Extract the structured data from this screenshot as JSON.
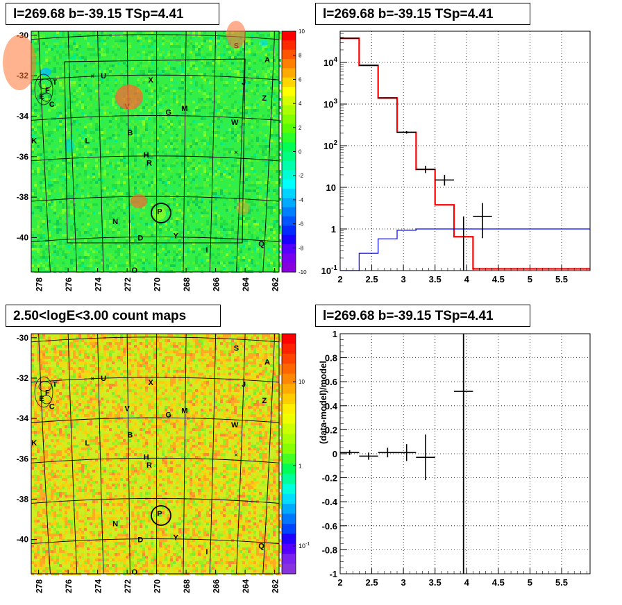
{
  "panels": {
    "tl_title": "l=269.68 b=-39.15 TSp=4.41",
    "tr_title": "l=269.68 b=-39.15 TSp=4.41",
    "bl_title": "2.50<logE<3.00 count maps",
    "br_title": "l=269.68 b=-39.15 TSp=4.41"
  },
  "chart_data": [
    {
      "type": "heatmap",
      "name": "ts-map",
      "title": "l=269.68 b=-39.15 TSp=4.41",
      "x_ticks": [
        "278",
        "276",
        "274",
        "272",
        "270",
        "268",
        "266",
        "264",
        "262"
      ],
      "xlim": [
        278.5,
        261.7
      ],
      "y_ticks": [
        "-30",
        "-32",
        "-34",
        "-36",
        "-38",
        "-40"
      ],
      "ylim": [
        -41.7,
        -29.8
      ],
      "colorbar_ticks": [
        "10",
        "8",
        "6",
        "4",
        "2",
        "0",
        "-2",
        "-4",
        "-6",
        "-8",
        "-10"
      ],
      "colorbar_range": [
        -10,
        10
      ],
      "source_labels": [
        {
          "t": "S",
          "l": 264.6,
          "b": -30.5
        },
        {
          "t": "A",
          "l": 262.5,
          "b": -31.2
        },
        {
          "t": "U",
          "l": 273.6,
          "b": -32.0
        },
        {
          "t": "X",
          "l": 270.4,
          "b": -32.2
        },
        {
          "t": "J",
          "l": 264.1,
          "b": -32.3
        },
        {
          "t": "T",
          "l": 276.9,
          "b": -32.3
        },
        {
          "t": "F",
          "l": 277.4,
          "b": -32.7
        },
        {
          "t": "E",
          "l": 277.8,
          "b": -33.0
        },
        {
          "t": "Z",
          "l": 262.7,
          "b": -33.1
        },
        {
          "t": "C",
          "l": 277.1,
          "b": -33.4
        },
        {
          "t": "V",
          "l": 272.0,
          "b": -33.5
        },
        {
          "t": "M",
          "l": 268.1,
          "b": -33.6
        },
        {
          "t": "G",
          "l": 269.2,
          "b": -33.8
        },
        {
          "t": "W",
          "l": 264.7,
          "b": -34.3
        },
        {
          "t": "B",
          "l": 271.8,
          "b": -34.8
        },
        {
          "t": "L",
          "l": 274.7,
          "b": -35.2
        },
        {
          "t": "K",
          "l": 278.3,
          "b": -35.2
        },
        {
          "t": "H",
          "l": 270.7,
          "b": -35.9
        },
        {
          "t": "R",
          "l": 270.5,
          "b": -36.3
        },
        {
          "t": "P",
          "l": 269.8,
          "b": -38.7
        },
        {
          "t": "N",
          "l": 272.8,
          "b": -39.2
        },
        {
          "t": "D",
          "l": 271.1,
          "b": -40.0
        },
        {
          "t": "Y",
          "l": 268.7,
          "b": -39.9
        },
        {
          "t": "I",
          "l": 266.6,
          "b": -40.6
        },
        {
          "t": "Q",
          "l": 262.9,
          "b": -40.3
        },
        {
          "t": "O",
          "l": 271.5,
          "b": -41.6
        }
      ]
    },
    {
      "type": "line",
      "name": "counts-spectrum",
      "title": "l=269.68 b=-39.15 TSp=4.41",
      "xlabel": "",
      "ylabel": "",
      "xlim": [
        2.0,
        5.95
      ],
      "ylim_log10": [
        -1.0,
        4.75
      ],
      "x_ticks": [
        "2",
        "2.5",
        "3",
        "3.5",
        "4",
        "4.5",
        "5",
        "5.5"
      ],
      "y_ticks": [
        "10^-1",
        "1",
        "10",
        "10^2",
        "10^3",
        "10^4"
      ],
      "scale_y": "log",
      "grid": true,
      "series": [
        {
          "color": "#ff0000",
          "edges": [
            2.0,
            2.3,
            2.6,
            2.9,
            3.2,
            3.5,
            3.8,
            4.1,
            4.4,
            5.95
          ],
          "values": [
            38000,
            8500,
            1400,
            210,
            27,
            3.8,
            0.65,
            0.11,
            0.11
          ]
        },
        {
          "color": "#0000ff",
          "edges": [
            2.0,
            2.3,
            2.6,
            2.9,
            3.2,
            3.5,
            3.8,
            4.1,
            5.95
          ],
          "values": [
            0.05,
            0.26,
            0.58,
            0.93,
            1.0,
            1.0,
            1.0,
            1.0
          ]
        }
      ],
      "points": [
        {
          "x": 2.15,
          "y": 38000,
          "dx": 0.15,
          "lo": 38000,
          "hi": 38000
        },
        {
          "x": 2.45,
          "y": 8500,
          "dx": 0.15,
          "lo": 8500,
          "hi": 8500
        },
        {
          "x": 2.75,
          "y": 1400,
          "dx": 0.15,
          "lo": 1400,
          "hi": 1400
        },
        {
          "x": 3.05,
          "y": 210,
          "dx": 0.15,
          "lo": 195,
          "hi": 225
        },
        {
          "x": 3.35,
          "y": 27,
          "dx": 0.15,
          "lo": 22,
          "hi": 33
        },
        {
          "x": 3.65,
          "y": 15,
          "dx": 0.15,
          "lo": 11,
          "hi": 20
        },
        {
          "x": 3.95,
          "y": 0.1,
          "dx": 0,
          "lo": 0.1,
          "hi": 2.0
        },
        {
          "x": 4.25,
          "y": 2,
          "dx": 0.15,
          "lo": 0.6,
          "hi": 4.2
        }
      ]
    },
    {
      "type": "heatmap",
      "name": "count-map",
      "title": "2.50<logE<3.00 count maps",
      "x_ticks": [
        "278",
        "276",
        "274",
        "272",
        "270",
        "268",
        "266",
        "264",
        "262"
      ],
      "y_ticks": [
        "-30",
        "-32",
        "-34",
        "-36",
        "-38",
        "-40"
      ],
      "colorbar_ticks": [
        "10",
        "1",
        "10^-1"
      ],
      "scale": "log"
    },
    {
      "type": "scatter",
      "name": "residuals",
      "title": "l=269.68 b=-39.15 TSp=4.41",
      "ylabel": "(data-model)/model",
      "xlim": [
        2.0,
        5.95
      ],
      "ylim": [
        -1,
        1
      ],
      "x_ticks": [
        "2",
        "2.5",
        "3",
        "3.5",
        "4",
        "4.5",
        "5",
        "5.5"
      ],
      "y_ticks": [
        "1",
        "0.8",
        "0.6",
        "0.4",
        "0.2",
        "0",
        "-0.2",
        "-0.4",
        "-0.6",
        "-0.8",
        "-1"
      ],
      "grid": true,
      "points": [
        {
          "x": 2.15,
          "y": 0.01,
          "dx": 0.15,
          "err": 0.02
        },
        {
          "x": 2.45,
          "y": -0.02,
          "dx": 0.15,
          "err": 0.03
        },
        {
          "x": 2.75,
          "y": 0.01,
          "dx": 0.15,
          "err": 0.04
        },
        {
          "x": 3.05,
          "y": 0.01,
          "dx": 0.15,
          "err": 0.07
        },
        {
          "x": 3.35,
          "y": -0.03,
          "dx": 0.15,
          "err": 0.19
        },
        {
          "x": 3.95,
          "y": -1.0,
          "dx": 0,
          "err": 0
        },
        {
          "x": 3.95,
          "y": 0.52,
          "dx": 0.15,
          "err": 0
        }
      ]
    }
  ]
}
